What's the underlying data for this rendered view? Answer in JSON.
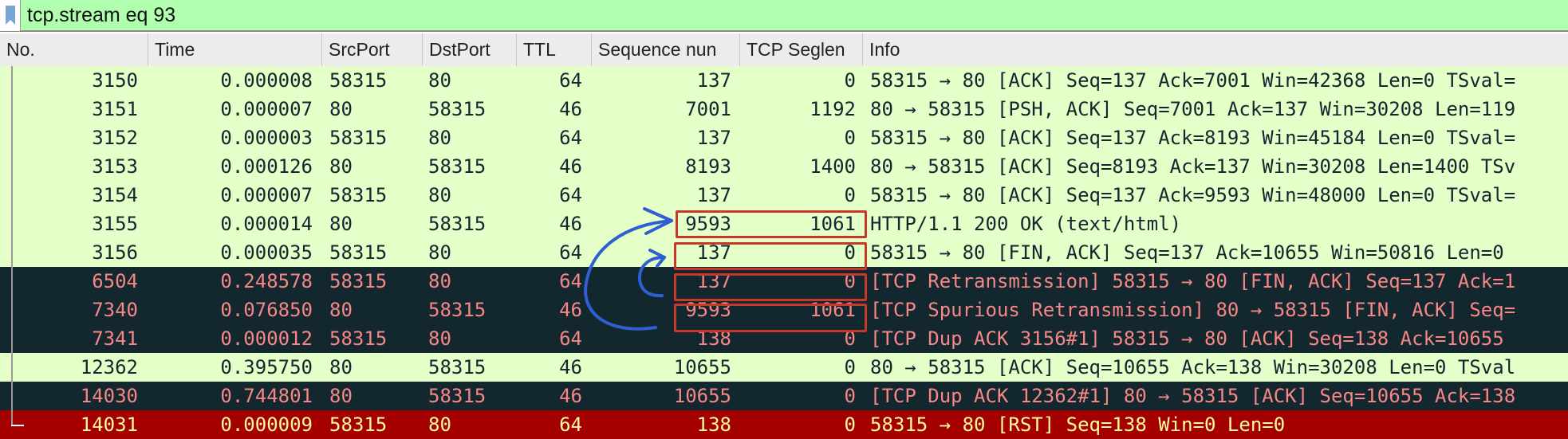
{
  "filter": {
    "value": "tcp.stream eq 93",
    "icon": "bookmark-icon"
  },
  "columns": [
    "No.",
    "Time",
    "SrcPort",
    "DstPort",
    "TTL",
    "Sequence nun",
    "TCP Seglen",
    "Info"
  ],
  "colors": {
    "normal_bg": "#e4ffc7",
    "bad_bg": "#12272e",
    "bad_fg": "#f78787",
    "rst_bg": "#a40000",
    "rst_fg": "#fffc9c",
    "filter_bg": "#afffaf",
    "annotation_box": "#c8382a",
    "annotation_arrow": "#2f5fd0"
  },
  "rows": [
    {
      "no": "3150",
      "time": "0.000008",
      "src": "58315",
      "dst": "80",
      "ttl": "64",
      "seq": "137",
      "len": "0",
      "info": "58315 → 80 [ACK] Seq=137 Ack=7001 Win=42368 Len=0 TSval=",
      "style": "normal"
    },
    {
      "no": "3151",
      "time": "0.000007",
      "src": "80",
      "dst": "58315",
      "ttl": "46",
      "seq": "7001",
      "len": "1192",
      "info": "80 → 58315 [PSH, ACK] Seq=7001 Ack=137 Win=30208 Len=119",
      "style": "normal"
    },
    {
      "no": "3152",
      "time": "0.000003",
      "src": "58315",
      "dst": "80",
      "ttl": "64",
      "seq": "137",
      "len": "0",
      "info": "58315 → 80 [ACK] Seq=137 Ack=8193 Win=45184 Len=0 TSval=",
      "style": "normal"
    },
    {
      "no": "3153",
      "time": "0.000126",
      "src": "80",
      "dst": "58315",
      "ttl": "46",
      "seq": "8193",
      "len": "1400",
      "info": "80 → 58315 [ACK] Seq=8193 Ack=137 Win=30208 Len=1400 TSv",
      "style": "normal"
    },
    {
      "no": "3154",
      "time": "0.000007",
      "src": "58315",
      "dst": "80",
      "ttl": "64",
      "seq": "137",
      "len": "0",
      "info": "58315 → 80 [ACK] Seq=137 Ack=9593 Win=48000 Len=0 TSval=",
      "style": "normal"
    },
    {
      "no": "3155",
      "time": "0.000014",
      "src": "80",
      "dst": "58315",
      "ttl": "46",
      "seq": "9593",
      "len": "1061",
      "info": "HTTP/1.1 200 OK  (text/html)",
      "style": "normal"
    },
    {
      "no": "3156",
      "time": "0.000035",
      "src": "58315",
      "dst": "80",
      "ttl": "64",
      "seq": "137",
      "len": "0",
      "info": "58315 → 80 [FIN, ACK] Seq=137 Ack=10655 Win=50816 Len=0",
      "style": "normal"
    },
    {
      "no": "6504",
      "time": "0.248578",
      "src": "58315",
      "dst": "80",
      "ttl": "64",
      "seq": "137",
      "len": "0",
      "info": "[TCP Retransmission] 58315 → 80 [FIN, ACK] Seq=137 Ack=1",
      "style": "bad"
    },
    {
      "no": "7340",
      "time": "0.076850",
      "src": "80",
      "dst": "58315",
      "ttl": "46",
      "seq": "9593",
      "len": "1061",
      "info": "[TCP Spurious Retransmission] 80 → 58315 [FIN, ACK] Seq=",
      "style": "bad"
    },
    {
      "no": "7341",
      "time": "0.000012",
      "src": "58315",
      "dst": "80",
      "ttl": "64",
      "seq": "138",
      "len": "0",
      "info": "[TCP Dup ACK 3156#1] 58315 → 80 [ACK] Seq=138 Ack=10655",
      "style": "bad"
    },
    {
      "no": "12362",
      "time": "0.395750",
      "src": "80",
      "dst": "58315",
      "ttl": "46",
      "seq": "10655",
      "len": "0",
      "info": "80 → 58315 [ACK] Seq=10655 Ack=138 Win=30208 Len=0 TSval",
      "style": "normal"
    },
    {
      "no": "14030",
      "time": "0.744801",
      "src": "80",
      "dst": "58315",
      "ttl": "46",
      "seq": "10655",
      "len": "0",
      "info": "[TCP Dup ACK 12362#1] 80 → 58315 [ACK] Seq=10655 Ack=138",
      "style": "bad"
    },
    {
      "no": "14031",
      "time": "0.000009",
      "src": "58315",
      "dst": "80",
      "ttl": "64",
      "seq": "138",
      "len": "0",
      "info": "58315 → 80 [RST] Seq=138 Win=0 Len=0",
      "style": "rst"
    }
  ],
  "annotations": {
    "highlighted_packets": [
      "3155",
      "3156",
      "6504",
      "7340"
    ]
  }
}
